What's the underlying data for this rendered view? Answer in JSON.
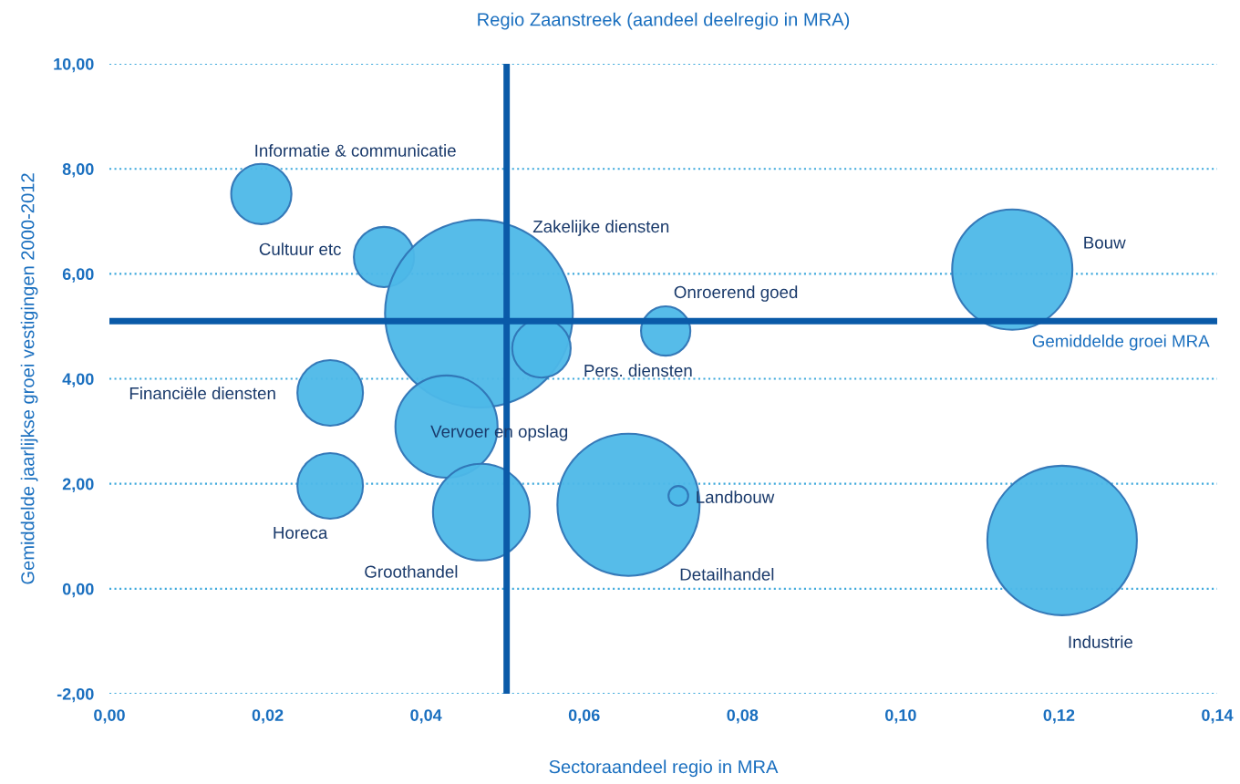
{
  "chart_data": {
    "type": "bubble",
    "title": "Regio Zaanstreek (aandeel deelregio in MRA)",
    "xlabel": "Sectoraandeel regio in MRA",
    "ylabel": "Gemiddelde jaarlijkse groei vestigingen 2000-2012",
    "series": [
      {
        "name": "Informatie & communicatie",
        "color": "#4db8e8",
        "x": [
          0.0192
        ],
        "values": [
          7.52
        ],
        "sizes": [
          0.103
        ]
      },
      {
        "name": "Cultuur etc",
        "color": "#4db8e8",
        "x": [
          0.0347
        ],
        "values": [
          6.32
        ],
        "sizes": [
          0.103
        ]
      },
      {
        "name": "Zakelijke diensten",
        "color": "#4db8e8",
        "x": [
          0.0467
        ],
        "values": [
          5.24
        ],
        "sizes": [
          1
        ]
      },
      {
        "name": "Pers. diensten",
        "color": "#4db8e8",
        "x": [
          0.0546
        ],
        "values": [
          4.58
        ],
        "sizes": [
          0.097
        ]
      },
      {
        "name": "Onroerend goed",
        "color": "#4db8e8",
        "x": [
          0.0703
        ],
        "values": [
          4.91
        ],
        "sizes": [
          0.069
        ]
      },
      {
        "name": "Bouw",
        "color": "#4db8e8",
        "x": [
          0.1141
        ],
        "values": [
          6.08
        ],
        "sizes": [
          0.41
        ]
      },
      {
        "name": "Financiële diensten",
        "color": "#4db8e8",
        "x": [
          0.0279
        ],
        "values": [
          3.73
        ],
        "sizes": [
          0.122
        ]
      },
      {
        "name": "Vervoer en opslag",
        "color": "#4db8e8",
        "x": [
          0.0426
        ],
        "values": [
          3.09
        ],
        "sizes": [
          0.296
        ]
      },
      {
        "name": "Horeca",
        "color": "#4db8e8",
        "x": [
          0.0279
        ],
        "values": [
          1.96
        ],
        "sizes": [
          0.122
        ]
      },
      {
        "name": "Groothandel",
        "color": "#4db8e8",
        "x": [
          0.047
        ],
        "values": [
          1.46
        ],
        "sizes": [
          0.265
        ]
      },
      {
        "name": "Detailhandel",
        "color": "#4db8e8",
        "x": [
          0.0656
        ],
        "values": [
          1.6
        ],
        "sizes": [
          0.573
        ]
      },
      {
        "name": "Landbouw",
        "color": "#4db8e8",
        "x": [
          0.0719
        ],
        "values": [
          1.77
        ],
        "sizes": [
          0.011
        ]
      },
      {
        "name": "Industrie",
        "color": "#4db8e8",
        "x": [
          0.1204
        ],
        "values": [
          0.92
        ],
        "sizes": [
          0.634
        ]
      }
    ],
    "xlim": [
      0,
      0.14
    ],
    "xticks": [
      {
        "value": 0,
        "label": "0,00"
      },
      {
        "value": 0.02,
        "label": "0,02"
      },
      {
        "value": 0.04,
        "label": "0,04"
      },
      {
        "value": 0.06,
        "label": "0,06"
      },
      {
        "value": 0.08,
        "label": "0,08"
      },
      {
        "value": 0.1,
        "label": "0,10"
      },
      {
        "value": 0.12,
        "label": "0,12"
      },
      {
        "value": 0.14,
        "label": "0,14"
      }
    ],
    "ylim": [
      -2,
      10
    ],
    "yticks": [
      {
        "value": -2,
        "label": "-2,00"
      },
      {
        "value": 0,
        "label": "0,00"
      },
      {
        "value": 2,
        "label": "2,00"
      },
      {
        "value": 4,
        "label": "4,00"
      },
      {
        "value": 6,
        "label": "6,00"
      },
      {
        "value": 8,
        "label": "8,00"
      },
      {
        "value": 10,
        "label": "10,00"
      }
    ],
    "ref_lines": [
      {
        "axis": "x",
        "value": 0.0502,
        "color": "#0a5aa8"
      },
      {
        "axis": "y",
        "value": 5.1,
        "label": "Gemiddelde groei MRA",
        "color": "#0a5aa8"
      }
    ],
    "grid": "y",
    "legend": false
  }
}
